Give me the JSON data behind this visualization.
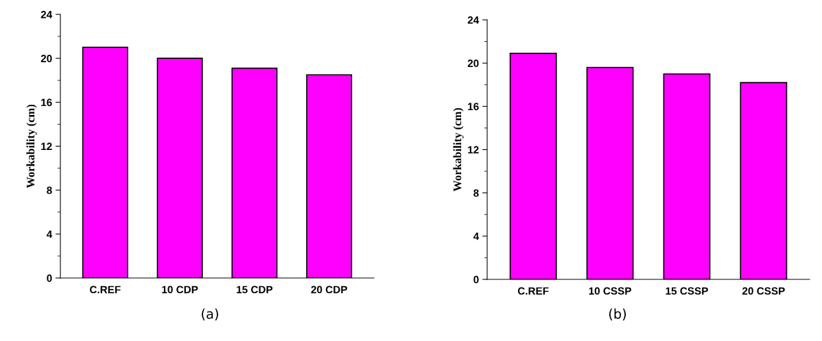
{
  "chart_data": [
    {
      "type": "bar",
      "categories": [
        "C.REF",
        "10 CDP",
        "15 CDP",
        "20 CDP"
      ],
      "values": [
        21.0,
        20.0,
        19.1,
        18.5
      ],
      "color": "#ff00ff",
      "ylabel": "Workability (cm)",
      "ylim": [
        0,
        24
      ],
      "yticks": [
        0,
        4,
        8,
        12,
        16,
        20,
        24
      ],
      "grid": false,
      "legend": false,
      "annotations": [
        "(a)"
      ]
    },
    {
      "type": "bar",
      "categories": [
        "C.REF",
        "10 CSSP",
        "15 CSSP",
        "20 CSSP"
      ],
      "values": [
        20.9,
        19.6,
        19.0,
        18.2
      ],
      "color": "#ff00ff",
      "ylabel": "Workability (cm)",
      "ylim": [
        0,
        24
      ],
      "yticks": [
        0,
        4,
        8,
        12,
        16,
        20,
        24
      ],
      "grid": false,
      "legend": false,
      "annotations": [
        "(b)"
      ]
    }
  ]
}
